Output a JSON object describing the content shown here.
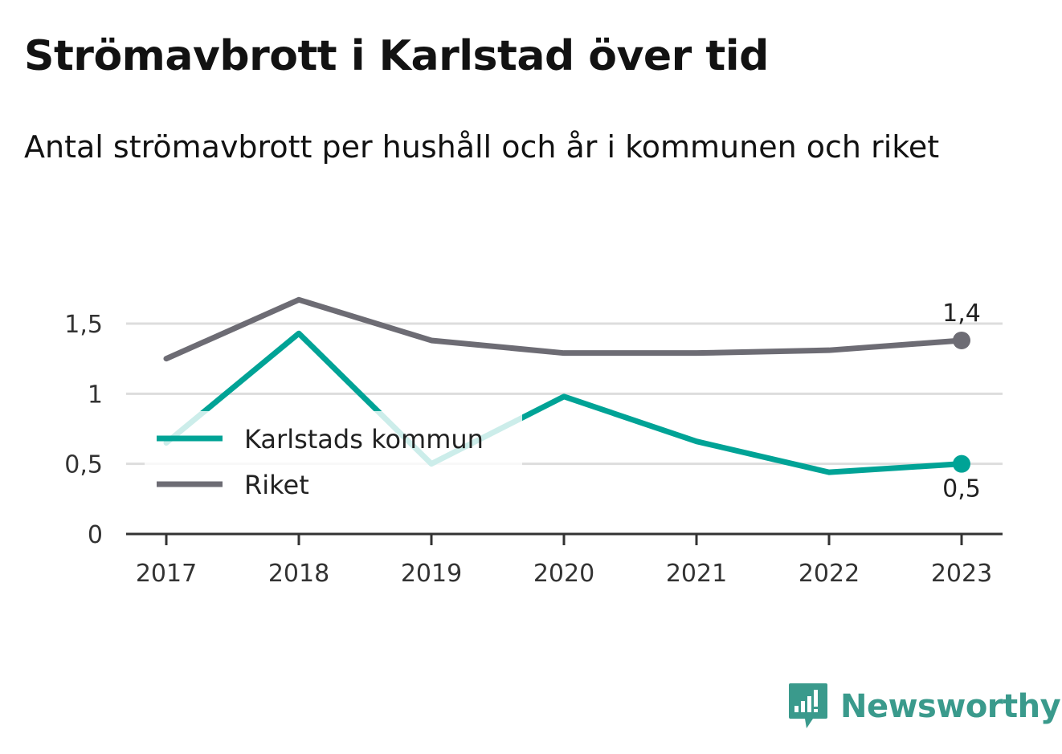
{
  "title": "Strömavbrott i Karlstad över tid",
  "subtitle": "Antal strömavbrott per hushåll och år i kommunen och riket",
  "brand": "Newsworthy",
  "colors": {
    "karlstad": "#00a396",
    "riket": "#6d6c74",
    "grid": "#dddddd",
    "axis": "#333333",
    "brand": "#3a9a8c"
  },
  "chart_data": {
    "type": "line",
    "x": [
      "2017",
      "2018",
      "2019",
      "2020",
      "2021",
      "2022",
      "2023"
    ],
    "yticks": [
      "0",
      "0,5",
      "1",
      "1,5"
    ],
    "ytick_values": [
      0,
      0.5,
      1,
      1.5
    ],
    "ylim": [
      0,
      1.5
    ],
    "grid": true,
    "legend_placement": "left-middle",
    "series": [
      {
        "name": "Karlstads kommun",
        "values": [
          0.65,
          1.43,
          0.5,
          0.98,
          0.66,
          0.44,
          0.5
        ],
        "end_label": "0,5"
      },
      {
        "name": "Riket",
        "values": [
          1.25,
          1.67,
          1.38,
          1.29,
          1.29,
          1.31,
          1.38
        ],
        "end_label": "1,4"
      }
    ]
  }
}
